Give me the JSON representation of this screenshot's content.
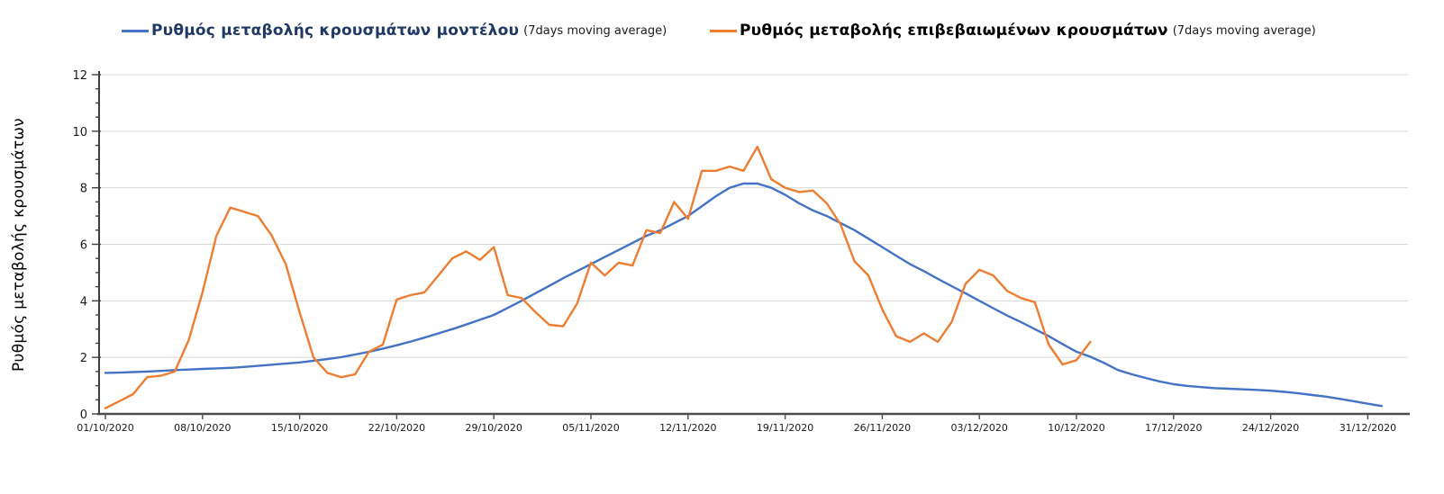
{
  "legend": [
    {
      "label": "Ρυθμός μεταβολής κρουσμάτων μοντέλου",
      "suffix": "(7days moving average)",
      "color": "#4472C4",
      "text_color": "#1F3864"
    },
    {
      "label": "Ρυθμός μεταβολής επιβεβαιωμένων κρουσμάτων",
      "suffix": "(7days moving average)",
      "color": "#ED7D31",
      "text_color": "#000000"
    }
  ],
  "y_axis": {
    "title": "Ρυθμός μεταβολής κρουσμάτων",
    "tick_labels": [
      "0",
      "2",
      "4",
      "6",
      "8",
      "10",
      "12"
    ],
    "min": 0,
    "max": 12,
    "major_step": 2,
    "minor_step": 0.5
  },
  "x_axis": {
    "tick_labels": [
      "01/10/2020",
      "08/10/2020",
      "15/10/2020",
      "22/10/2020",
      "29/10/2020",
      "05/11/2020",
      "12/11/2020",
      "19/11/2020",
      "26/11/2020",
      "03/12/2020",
      "10/12/2020",
      "17/12/2020",
      "24/12/2020",
      "31/12/2020"
    ]
  },
  "colors": {
    "model_line": "#4472C4",
    "confirmed_line": "#ED7D31",
    "gridline": "#D9D9D9",
    "axis": "#4D4D4D"
  },
  "chart_data": {
    "type": "line",
    "title": "",
    "xlabel": "",
    "ylabel": "Ρυθμός μεταβολής κρουσμάτων",
    "ylim": [
      0,
      12
    ],
    "grid": true,
    "legend_position": "top",
    "x_start_date": "01/10/2020",
    "x_unit": "day",
    "x_tick_every_days": 7,
    "x_tick_labels": [
      "01/10/2020",
      "08/10/2020",
      "15/10/2020",
      "22/10/2020",
      "29/10/2020",
      "05/11/2020",
      "12/11/2020",
      "19/11/2020",
      "26/11/2020",
      "03/12/2020",
      "10/12/2020",
      "17/12/2020",
      "24/12/2020",
      "31/12/2020"
    ],
    "series": [
      {
        "name": "Ρυθμός μεταβολής κρουσμάτων μοντέλου (7days moving average)",
        "color": "#4472C4",
        "values": [
          1.45,
          1.46,
          1.48,
          1.5,
          1.52,
          1.55,
          1.57,
          1.59,
          1.61,
          1.63,
          1.66,
          1.7,
          1.74,
          1.78,
          1.82,
          1.88,
          1.94,
          2.01,
          2.1,
          2.2,
          2.31,
          2.43,
          2.56,
          2.7,
          2.85,
          3.0,
          3.16,
          3.33,
          3.5,
          3.75,
          4.0,
          4.27,
          4.53,
          4.8,
          5.05,
          5.3,
          5.55,
          5.8,
          6.05,
          6.3,
          6.5,
          6.75,
          7.0,
          7.35,
          7.7,
          8.0,
          8.15,
          8.15,
          8.0,
          7.75,
          7.45,
          7.2,
          7.0,
          6.75,
          6.5,
          6.2,
          5.9,
          5.6,
          5.3,
          5.05,
          4.78,
          4.52,
          4.27,
          4.0,
          3.74,
          3.48,
          3.25,
          3.0,
          2.75,
          2.47,
          2.2,
          2.02,
          1.8,
          1.55,
          1.4,
          1.27,
          1.15,
          1.05,
          0.99,
          0.95,
          0.91,
          0.89,
          0.87,
          0.85,
          0.82,
          0.78,
          0.73,
          0.67,
          0.61,
          0.53,
          0.45,
          0.36,
          0.28
        ]
      },
      {
        "name": "Ρυθμός μεταβολής επιβεβαιωμένων κρουσμάτων (7days moving average)",
        "color": "#ED7D31",
        "values": [
          0.2,
          0.45,
          0.7,
          1.3,
          1.35,
          1.5,
          2.6,
          4.3,
          6.3,
          7.3,
          7.15,
          7.0,
          6.3,
          5.3,
          3.6,
          2.0,
          1.45,
          1.3,
          1.4,
          2.2,
          2.45,
          4.05,
          4.2,
          4.3,
          4.9,
          5.5,
          5.75,
          5.45,
          5.9,
          4.2,
          4.1,
          3.6,
          3.15,
          3.1,
          3.9,
          5.35,
          4.9,
          5.35,
          5.25,
          6.5,
          6.4,
          7.5,
          6.9,
          8.6,
          8.6,
          8.75,
          8.6,
          9.45,
          8.3,
          8.0,
          7.85,
          7.9,
          7.45,
          6.7,
          5.4,
          4.9,
          3.7,
          2.75,
          2.55,
          2.85,
          2.55,
          3.25,
          4.6,
          5.1,
          4.9,
          4.35,
          4.1,
          3.95,
          2.45,
          1.75,
          1.9,
          2.55
        ]
      }
    ]
  }
}
